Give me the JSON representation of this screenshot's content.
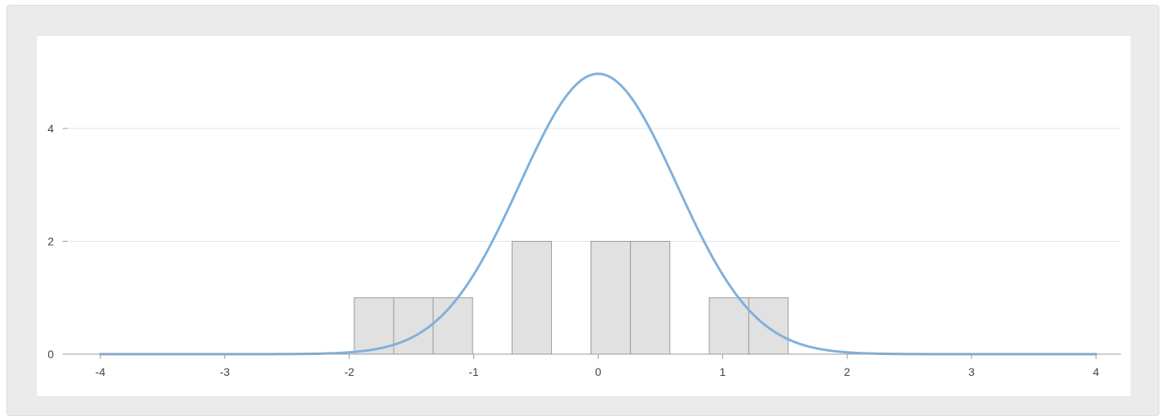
{
  "chart_data": {
    "type": "bar",
    "subtype": "histogram with normal density curve",
    "title": "",
    "xlabel": "",
    "ylabel": "",
    "xlim": [
      -4,
      4
    ],
    "ylim": [
      0,
      5
    ],
    "x_ticks": [
      -4,
      -3,
      -2,
      -1,
      0,
      1,
      2,
      3,
      4
    ],
    "y_ticks": [
      0,
      2,
      4
    ],
    "grid": true,
    "legend": "none",
    "bins": {
      "start": -1.96,
      "width": 0.317,
      "counts": [
        1,
        1,
        1,
        0,
        2,
        0,
        2,
        2,
        0,
        1,
        1,
        0
      ]
    },
    "curve": {
      "mean": 0,
      "sd": 0.63,
      "peak": 4.97,
      "x_range": [
        -4,
        4
      ]
    },
    "colors": {
      "bar_fill": "#e1e1e1",
      "bar_stroke": "#999999",
      "curve": "#7fb1dc",
      "grid": "#e6e6e6",
      "axis": "#9a9a9a",
      "text": "#444444"
    }
  }
}
